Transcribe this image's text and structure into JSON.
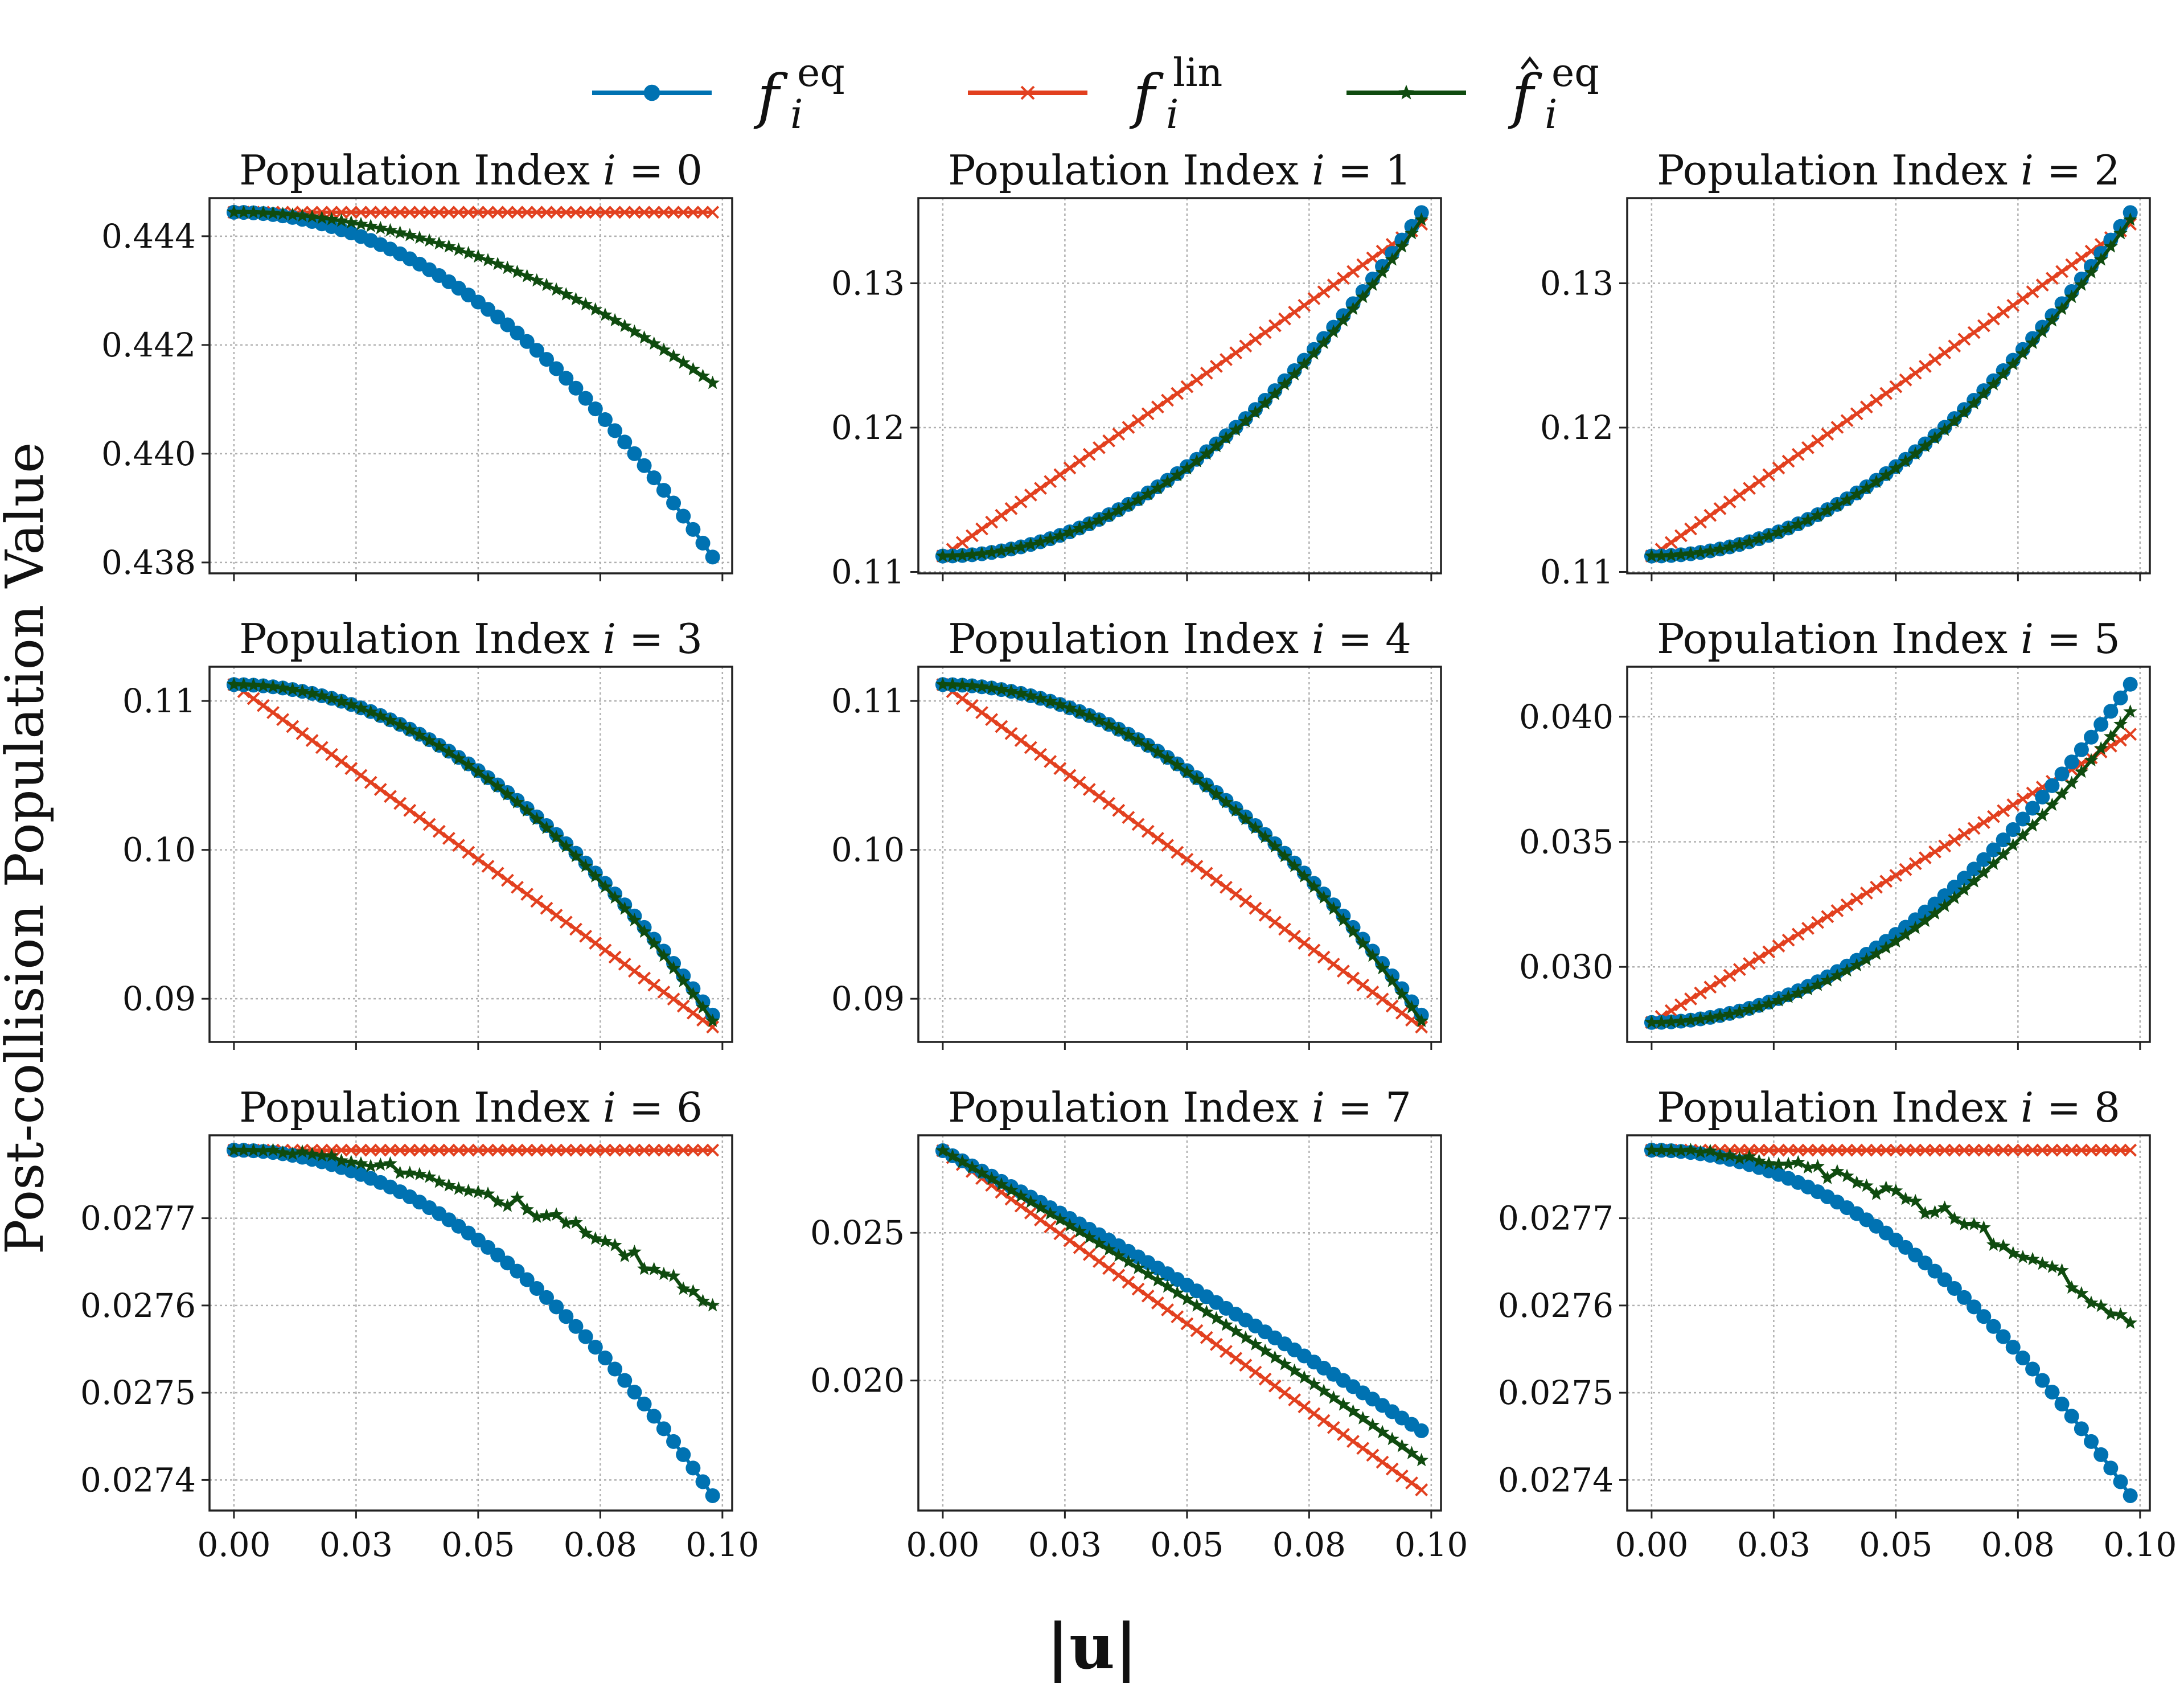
{
  "figure": {
    "ylabel": "Post-collision Population Value",
    "xlabel": "|u|",
    "legend": [
      {
        "base": "f",
        "sub": "i",
        "sup": "eq",
        "hat": false,
        "color": "#0072b2",
        "marker": "circle"
      },
      {
        "base": "f",
        "sub": "i",
        "sup": "lin",
        "hat": false,
        "color": "#e2401f",
        "marker": "x"
      },
      {
        "base": "f",
        "sub": "i",
        "sup": "eq",
        "hat": true,
        "color": "#0f4b0f",
        "marker": "star"
      }
    ]
  },
  "chart_data": [
    {
      "type": "line",
      "title": "Population Index i = 0",
      "title_text": "Population Index ",
      "title_var": "i",
      "title_eq": " = ",
      "title_idx": "0",
      "xlim": [
        -0.005,
        0.102
      ],
      "ylim": [
        0.4378,
        0.4447
      ],
      "yticks": [
        0.438,
        0.44,
        0.442,
        0.444
      ],
      "ytick_labels": [
        "0.438",
        "0.440",
        "0.442",
        "0.444"
      ],
      "xticks": [
        0.0,
        0.025,
        0.05,
        0.075,
        0.1
      ],
      "xtick_labels": [
        "0.00",
        "0.03",
        "0.05",
        "0.08",
        "0.10"
      ],
      "show_xticklabels": false,
      "x": {
        "start": 0.0,
        "end": 0.098,
        "count": 50
      },
      "series": [
        {
          "key": "feq",
          "start": 0.44444,
          "end": 0.4381,
          "shape": "quadratic"
        },
        {
          "key": "flin",
          "start": 0.44444,
          "end": 0.44444,
          "shape": "linear"
        },
        {
          "key": "fhat",
          "start": 0.44444,
          "end": 0.4413,
          "shape": "quadratic"
        }
      ]
    },
    {
      "type": "line",
      "title": "Population Index i = 1",
      "title_text": "Population Index ",
      "title_var": "i",
      "title_eq": " = ",
      "title_idx": "1",
      "xlim": [
        -0.005,
        0.102
      ],
      "ylim": [
        0.1099,
        0.1359
      ],
      "yticks": [
        0.11,
        0.12,
        0.13
      ],
      "ytick_labels": [
        "0.11",
        "0.12",
        "0.13"
      ],
      "xticks": [
        0.0,
        0.025,
        0.05,
        0.075,
        0.1
      ],
      "xtick_labels": [
        "0.00",
        "0.03",
        "0.05",
        "0.08",
        "0.10"
      ],
      "show_xticklabels": false,
      "x": {
        "start": 0.0,
        "end": 0.098,
        "count": 50
      },
      "series": [
        {
          "key": "feq",
          "start": 0.1111,
          "end": 0.1349,
          "shape": "quadratic"
        },
        {
          "key": "flin",
          "start": 0.1111,
          "end": 0.1341,
          "shape": "linear"
        },
        {
          "key": "fhat",
          "start": 0.1111,
          "end": 0.1344,
          "shape": "quadratic"
        }
      ]
    },
    {
      "type": "line",
      "title": "Population Index i = 2",
      "title_text": "Population Index ",
      "title_var": "i",
      "title_eq": " = ",
      "title_idx": "2",
      "xlim": [
        -0.005,
        0.102
      ],
      "ylim": [
        0.1099,
        0.1359
      ],
      "yticks": [
        0.11,
        0.12,
        0.13
      ],
      "ytick_labels": [
        "0.11",
        "0.12",
        "0.13"
      ],
      "xticks": [
        0.0,
        0.025,
        0.05,
        0.075,
        0.1
      ],
      "xtick_labels": [
        "0.00",
        "0.03",
        "0.05",
        "0.08",
        "0.10"
      ],
      "show_xticklabels": false,
      "x": {
        "start": 0.0,
        "end": 0.098,
        "count": 50
      },
      "series": [
        {
          "key": "feq",
          "start": 0.1111,
          "end": 0.1349,
          "shape": "quadratic"
        },
        {
          "key": "flin",
          "start": 0.1111,
          "end": 0.1341,
          "shape": "linear"
        },
        {
          "key": "fhat",
          "start": 0.1111,
          "end": 0.1344,
          "shape": "quadratic"
        }
      ]
    },
    {
      "type": "line",
      "title": "Population Index i = 3",
      "title_text": "Population Index ",
      "title_var": "i",
      "title_eq": " = ",
      "title_idx": "3",
      "xlim": [
        -0.005,
        0.102
      ],
      "ylim": [
        0.0871,
        0.1123
      ],
      "yticks": [
        0.09,
        0.1,
        0.11
      ],
      "ytick_labels": [
        "0.09",
        "0.10",
        "0.11"
      ],
      "xticks": [
        0.0,
        0.025,
        0.05,
        0.075,
        0.1
      ],
      "xtick_labels": [
        "0.00",
        "0.03",
        "0.05",
        "0.08",
        "0.10"
      ],
      "show_xticklabels": false,
      "x": {
        "start": 0.0,
        "end": 0.098,
        "count": 50
      },
      "series": [
        {
          "key": "feq",
          "start": 0.1111,
          "end": 0.0889,
          "shape": "quadratic"
        },
        {
          "key": "flin",
          "start": 0.1111,
          "end": 0.0881,
          "shape": "linear"
        },
        {
          "key": "fhat",
          "start": 0.1111,
          "end": 0.0885,
          "shape": "quadratic"
        }
      ]
    },
    {
      "type": "line",
      "title": "Population Index i = 4",
      "title_text": "Population Index ",
      "title_var": "i",
      "title_eq": " = ",
      "title_idx": "4",
      "xlim": [
        -0.005,
        0.102
      ],
      "ylim": [
        0.0871,
        0.1123
      ],
      "yticks": [
        0.09,
        0.1,
        0.11
      ],
      "ytick_labels": [
        "0.09",
        "0.10",
        "0.11"
      ],
      "xticks": [
        0.0,
        0.025,
        0.05,
        0.075,
        0.1
      ],
      "xtick_labels": [
        "0.00",
        "0.03",
        "0.05",
        "0.08",
        "0.10"
      ],
      "show_xticklabels": false,
      "x": {
        "start": 0.0,
        "end": 0.098,
        "count": 50
      },
      "series": [
        {
          "key": "feq",
          "start": 0.1111,
          "end": 0.0889,
          "shape": "quadratic"
        },
        {
          "key": "flin",
          "start": 0.1111,
          "end": 0.0881,
          "shape": "linear"
        },
        {
          "key": "fhat",
          "start": 0.1111,
          "end": 0.0885,
          "shape": "quadratic"
        }
      ]
    },
    {
      "type": "line",
      "title": "Population Index i = 5",
      "title_text": "Population Index ",
      "title_var": "i",
      "title_eq": " = ",
      "title_idx": "5",
      "xlim": [
        -0.005,
        0.102
      ],
      "ylim": [
        0.027,
        0.042
      ],
      "yticks": [
        0.03,
        0.035,
        0.04
      ],
      "ytick_labels": [
        "0.030",
        "0.035",
        "0.040"
      ],
      "xticks": [
        0.0,
        0.025,
        0.05,
        0.075,
        0.1
      ],
      "xtick_labels": [
        "0.00",
        "0.03",
        "0.05",
        "0.08",
        "0.10"
      ],
      "show_xticklabels": false,
      "x": {
        "start": 0.0,
        "end": 0.098,
        "count": 50
      },
      "series": [
        {
          "key": "feq",
          "start": 0.02778,
          "end": 0.0413,
          "shape": "quadratic"
        },
        {
          "key": "flin",
          "start": 0.02778,
          "end": 0.0393,
          "shape": "linear"
        },
        {
          "key": "fhat",
          "start": 0.02778,
          "end": 0.0402,
          "shape": "quadratic"
        }
      ]
    },
    {
      "type": "line",
      "title": "Population Index i = 6",
      "title_text": "Population Index ",
      "title_var": "i",
      "title_eq": " = ",
      "title_idx": "6",
      "xlim": [
        -0.005,
        0.102
      ],
      "ylim": [
        0.027365,
        0.027795
      ],
      "yticks": [
        0.0274,
        0.0275,
        0.0276,
        0.0277
      ],
      "ytick_labels": [
        "0.0274",
        "0.0275",
        "0.0276",
        "0.0277"
      ],
      "xticks": [
        0.0,
        0.025,
        0.05,
        0.075,
        0.1
      ],
      "xtick_labels": [
        "0.00",
        "0.03",
        "0.05",
        "0.08",
        "0.10"
      ],
      "show_xticklabels": true,
      "x": {
        "start": 0.0,
        "end": 0.098,
        "count": 50
      },
      "series": [
        {
          "key": "feq",
          "start": 0.027778,
          "end": 0.027382,
          "shape": "quadratic"
        },
        {
          "key": "flin",
          "start": 0.027778,
          "end": 0.027778,
          "shape": "linear"
        },
        {
          "key": "fhat",
          "start": 0.027778,
          "end": 0.0276,
          "shape": "quadratic",
          "noise": 8e-06
        }
      ]
    },
    {
      "type": "line",
      "title": "Population Index i = 7",
      "title_text": "Population Index ",
      "title_var": "i",
      "title_eq": " = ",
      "title_idx": "7",
      "xlim": [
        -0.005,
        0.102
      ],
      "ylim": [
        0.0156,
        0.0283
      ],
      "yticks": [
        0.02,
        0.025
      ],
      "ytick_labels": [
        "0.020",
        "0.025"
      ],
      "xticks": [
        0.0,
        0.025,
        0.05,
        0.075,
        0.1
      ],
      "xtick_labels": [
        "0.00",
        "0.03",
        "0.05",
        "0.08",
        "0.10"
      ],
      "show_xticklabels": true,
      "x": {
        "start": 0.0,
        "end": 0.098,
        "count": 50
      },
      "series": [
        {
          "key": "feq",
          "start": 0.02778,
          "end": 0.0183,
          "shape": "convex"
        },
        {
          "key": "flin",
          "start": 0.02778,
          "end": 0.0163,
          "shape": "linear"
        },
        {
          "key": "fhat",
          "start": 0.02778,
          "end": 0.0173,
          "shape": "convex"
        }
      ]
    },
    {
      "type": "line",
      "title": "Population Index i = 8",
      "title_text": "Population Index ",
      "title_var": "i",
      "title_eq": " = ",
      "title_idx": "8",
      "xlim": [
        -0.005,
        0.102
      ],
      "ylim": [
        0.027365,
        0.027795
      ],
      "yticks": [
        0.0274,
        0.0275,
        0.0276,
        0.0277
      ],
      "ytick_labels": [
        "0.0274",
        "0.0275",
        "0.0276",
        "0.0277"
      ],
      "xticks": [
        0.0,
        0.025,
        0.05,
        0.075,
        0.1
      ],
      "xtick_labels": [
        "0.00",
        "0.03",
        "0.05",
        "0.08",
        "0.10"
      ],
      "show_xticklabels": true,
      "x": {
        "start": 0.0,
        "end": 0.098,
        "count": 50
      },
      "series": [
        {
          "key": "feq",
          "start": 0.027778,
          "end": 0.027382,
          "shape": "quadratic"
        },
        {
          "key": "flin",
          "start": 0.027778,
          "end": 0.027778,
          "shape": "linear"
        },
        {
          "key": "fhat",
          "start": 0.027778,
          "end": 0.02758,
          "shape": "quadratic",
          "noise": 9e-06
        }
      ]
    }
  ]
}
